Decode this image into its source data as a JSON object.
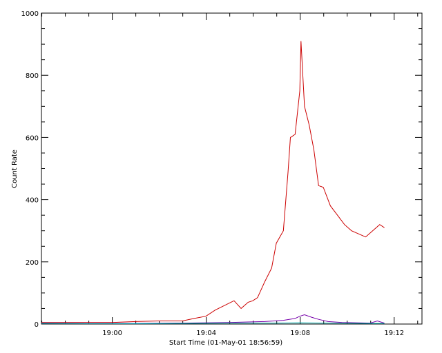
{
  "chart_data": {
    "type": "line",
    "title": "",
    "xlabel": "Start Time (01-May-01 18:56:59)",
    "ylabel": "Count Rate",
    "x_unit": "minutes after 18:56:59",
    "xlim": [
      0,
      16.2
    ],
    "ylim": [
      0,
      1000
    ],
    "x_ticks": [
      {
        "value": 3.017,
        "label": "19:00"
      },
      {
        "value": 7.017,
        "label": "19:04"
      },
      {
        "value": 11.017,
        "label": "19:08"
      },
      {
        "value": 15.017,
        "label": "19:12"
      }
    ],
    "y_ticks": [
      {
        "value": 0,
        "label": "0"
      },
      {
        "value": 200,
        "label": "200"
      },
      {
        "value": 400,
        "label": "400"
      },
      {
        "value": 600,
        "label": "600"
      },
      {
        "value": 800,
        "label": "800"
      },
      {
        "value": 1000,
        "label": "1000"
      }
    ],
    "grid": false,
    "legend": "none",
    "series": [
      {
        "color": "#cc0000",
        "x": [
          0,
          1,
          2,
          3,
          4,
          5,
          6,
          6.5,
          7,
          7.4,
          7.8,
          8.2,
          8.5,
          8.8,
          9.0,
          9.2,
          9.5,
          9.8,
          10.0,
          10.3,
          10.5,
          10.6,
          10.8,
          11.0,
          11.05,
          11.2,
          11.4,
          11.6,
          11.8,
          12.0,
          12.3,
          12.6,
          12.9,
          13.2,
          13.5,
          13.8,
          14.1,
          14.4,
          14.6
        ],
        "y": [
          5,
          5,
          5,
          5,
          8,
          10,
          10,
          18,
          25,
          45,
          60,
          75,
          50,
          70,
          75,
          85,
          135,
          180,
          260,
          300,
          490,
          600,
          610,
          750,
          910,
          700,
          640,
          560,
          445,
          440,
          380,
          350,
          320,
          300,
          290,
          280,
          300,
          320,
          310
        ]
      },
      {
        "color": "#7700aa",
        "x": [
          0,
          2,
          4,
          6,
          8,
          9.5,
          10.3,
          10.8,
          11.0,
          11.2,
          11.5,
          11.8,
          12.2,
          12.8,
          13.5,
          14.0,
          14.3,
          14.6
        ],
        "y": [
          3,
          2,
          2,
          3,
          5,
          8,
          12,
          18,
          25,
          30,
          22,
          15,
          8,
          5,
          4,
          3,
          10,
          3
        ]
      },
      {
        "color": "#00aaaa",
        "x": [
          0,
          2,
          4,
          6,
          8,
          10,
          11,
          12,
          14,
          14.6
        ],
        "y": [
          2,
          1,
          1,
          2,
          3,
          3,
          4,
          3,
          2,
          2
        ]
      }
    ]
  }
}
